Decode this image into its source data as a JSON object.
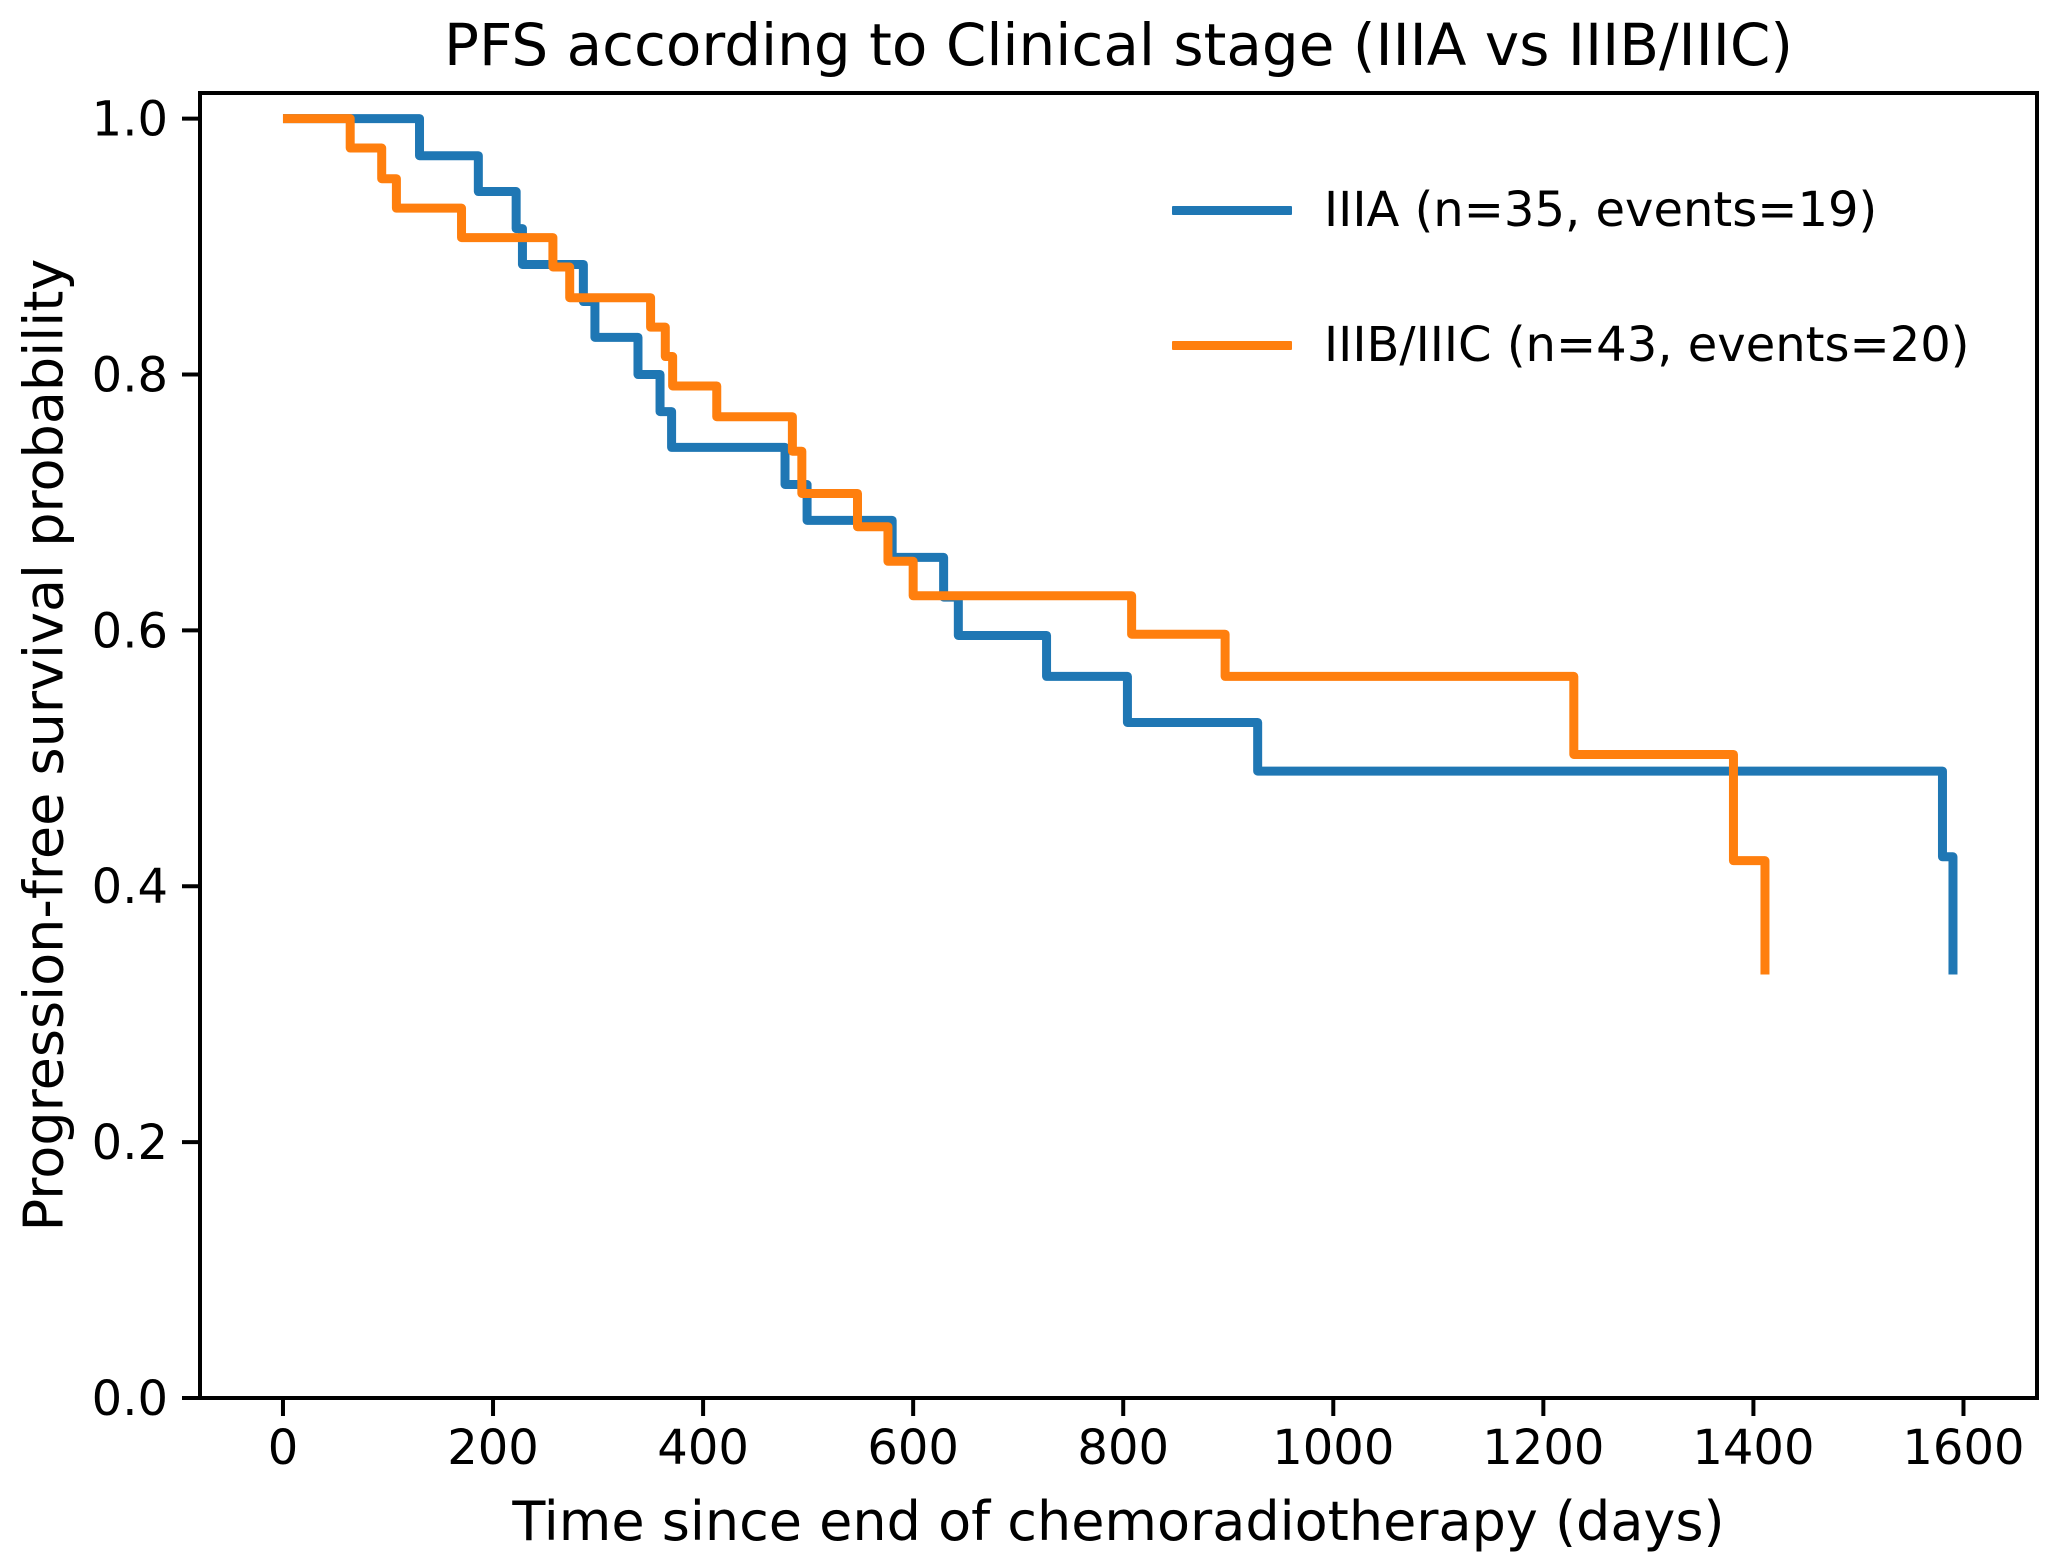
{
  "title": "PFS according to Clinical stage (IIIA vs IIIB/IIIC)",
  "chart_data": {
    "type": "line",
    "subtype": "kaplan-meier-step-curve",
    "title": "PFS according to Clinical stage (IIIA vs IIIB/IIIC)",
    "xlabel": "Time since end of chemoradiotherapy (days)",
    "ylabel": "Progression-free survival probability",
    "grid": false,
    "legend_position": "upper right",
    "background_color": "#ffffff",
    "axis_color": "#000000",
    "xlim": [
      -79,
      1670
    ],
    "ylim": [
      0,
      1.02
    ],
    "xticks": {
      "values": [
        0,
        200,
        400,
        600,
        800,
        1000,
        1200,
        1400,
        1600
      ],
      "labels": [
        "0",
        "200",
        "400",
        "600",
        "800",
        "1000",
        "1200",
        "1400",
        "1600"
      ]
    },
    "yticks": {
      "values": [
        0.0,
        0.2,
        0.4,
        0.6,
        0.8,
        1.0
      ],
      "labels": [
        "0.0",
        "0.2",
        "0.4",
        "0.6",
        "0.8",
        "1.0"
      ]
    },
    "series": [
      {
        "name": "IIIA",
        "label": "IIIA (n=35, events=19)",
        "color": "#1f77b4",
        "n": 35,
        "events": 19,
        "steps": [
          [
            0,
            1.0
          ],
          [
            130,
            0.971
          ],
          [
            186,
            0.943
          ],
          [
            222,
            0.914
          ],
          [
            228,
            0.886
          ],
          [
            286,
            0.857
          ],
          [
            297,
            0.829
          ],
          [
            338,
            0.8
          ],
          [
            359,
            0.771
          ],
          [
            370,
            0.743
          ],
          [
            478,
            0.714
          ],
          [
            499,
            0.686
          ],
          [
            580,
            0.657
          ],
          [
            629,
            0.626
          ],
          [
            643,
            0.596
          ],
          [
            727,
            0.564
          ],
          [
            804,
            0.528
          ],
          [
            928,
            0.49
          ],
          [
            1580,
            0.423
          ],
          [
            1590,
            0.331
          ]
        ]
      },
      {
        "name": "IIIB/IIIC",
        "label": "IIIB/IIIC (n=43, events=20)",
        "color": "#ff7f0e",
        "n": 43,
        "events": 20,
        "steps": [
          [
            0,
            1.0
          ],
          [
            64,
            0.977
          ],
          [
            94,
            0.953
          ],
          [
            108,
            0.93
          ],
          [
            170,
            0.907
          ],
          [
            257,
            0.884
          ],
          [
            273,
            0.86
          ],
          [
            350,
            0.837
          ],
          [
            364,
            0.814
          ],
          [
            371,
            0.791
          ],
          [
            413,
            0.767
          ],
          [
            485,
            0.74
          ],
          [
            494,
            0.707
          ],
          [
            547,
            0.681
          ],
          [
            576,
            0.654
          ],
          [
            600,
            0.627
          ],
          [
            808,
            0.597
          ],
          [
            897,
            0.564
          ],
          [
            1229,
            0.503
          ],
          [
            1381,
            0.42
          ],
          [
            1411,
            0.331
          ]
        ]
      }
    ]
  }
}
